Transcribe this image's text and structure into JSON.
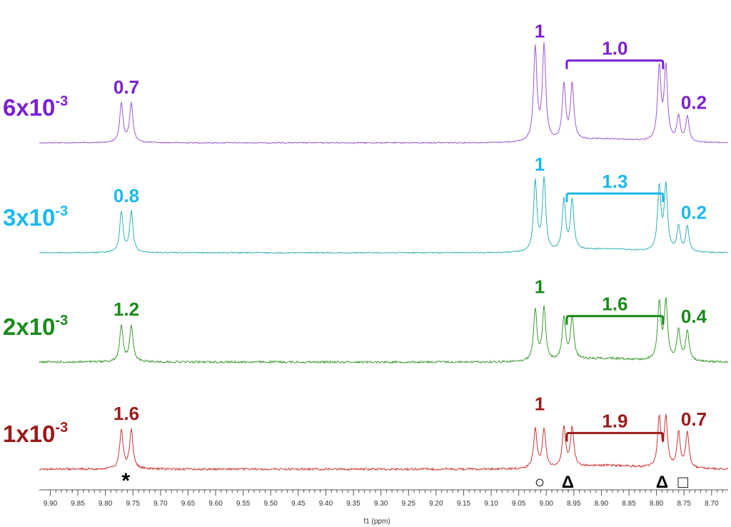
{
  "chart_data": {
    "type": "line",
    "xlabel": "f1 (ppm)",
    "xlim": [
      9.92,
      8.67
    ],
    "x_reversed": true,
    "x_ticks": [
      "9.90",
      "9.85",
      "9.80",
      "9.75",
      "9.70",
      "9.65",
      "9.60",
      "9.55",
      "9.50",
      "9.45",
      "9.40",
      "9.35",
      "9.30",
      "9.25",
      "9.20",
      "9.15",
      "9.10",
      "9.05",
      "9.00",
      "8.95",
      "8.90",
      "8.85",
      "8.80",
      "8.75",
      "8.70"
    ],
    "grid": false,
    "peak_ppm": [
      9.771,
      9.753,
      9.02,
      9.004,
      8.968,
      8.953,
      8.795,
      8.783,
      8.76,
      8.744
    ],
    "series": [
      {
        "name": "6x10",
        "exponent": "-3",
        "color": "#9b59d0",
        "label_color": "#7b1fd2",
        "integrals": {
          "asterisk": "0.7",
          "circle": "1",
          "triangle": "1.0",
          "square": "0.2"
        },
        "peak_heights": [
          0.56,
          0.56,
          1.34,
          1.36,
          0.8,
          0.8,
          1.05,
          1.05,
          0.36,
          0.36
        ]
      },
      {
        "name": "3x10",
        "exponent": "-3",
        "color": "#30b0b8",
        "label_color": "#1bb8ee",
        "integrals": {
          "asterisk": "0.8",
          "circle": "1",
          "triangle": "1.3",
          "square": "0.2"
        },
        "peak_heights": [
          0.58,
          0.58,
          1.0,
          1.03,
          0.72,
          0.72,
          0.91,
          0.93,
          0.36,
          0.36
        ]
      },
      {
        "name": "2x10",
        "exponent": "-3",
        "color": "#3c9a30",
        "label_color": "#1a8a1a",
        "integrals": {
          "asterisk": "1.2",
          "circle": "1",
          "triangle": "1.6",
          "square": "0.4"
        },
        "peak_heights": [
          0.52,
          0.52,
          0.74,
          0.76,
          0.6,
          0.6,
          0.82,
          0.84,
          0.44,
          0.44
        ]
      },
      {
        "name": "1x10",
        "exponent": "-3",
        "color": "#cc3535",
        "label_color": "#9b1a1a",
        "integrals": {
          "asterisk": "1.6",
          "circle": "1",
          "triangle": "1.9",
          "square": "0.7"
        },
        "peak_heights": [
          0.56,
          0.56,
          0.56,
          0.56,
          0.56,
          0.56,
          0.7,
          0.7,
          0.5,
          0.5
        ]
      }
    ],
    "markers": [
      {
        "symbol": "*",
        "ppm": 9.763
      },
      {
        "symbol": "○",
        "ppm": 9.012
      },
      {
        "symbol": "Δ",
        "ppm": 8.961
      },
      {
        "symbol": "Δ",
        "ppm": 8.79
      },
      {
        "symbol": "□",
        "ppm": 8.752
      }
    ]
  }
}
